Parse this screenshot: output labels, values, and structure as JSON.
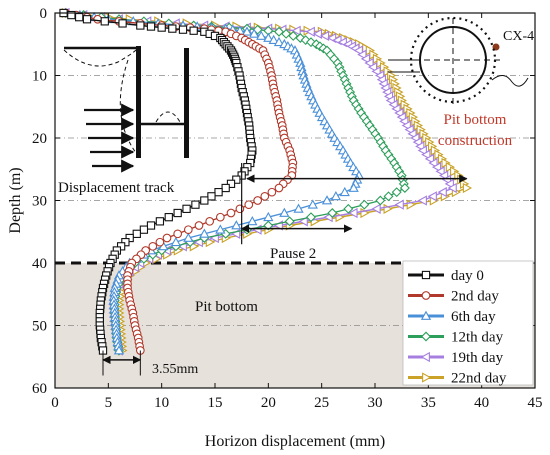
{
  "chart_data": {
    "type": "line",
    "xlabel": "Horizon displacement (mm)",
    "ylabel": "Depth (m)",
    "xlim": [
      0,
      45
    ],
    "ylim": [
      0,
      60
    ],
    "y_inverted": true,
    "x_ticks": [
      0,
      5,
      10,
      15,
      20,
      25,
      30,
      35,
      40,
      45
    ],
    "y_ticks": [
      0,
      10,
      20,
      30,
      40,
      50,
      60
    ],
    "grid": "dash-dot horizontal at 10 m intervals",
    "legend_position": "bottom-right",
    "pit_bottom_depth": 40,
    "colors": {
      "pit_region": "#e6e1da",
      "pit_bottom_annotation": "#c0392b",
      "marker_point": "#8b3a1e"
    },
    "series": [
      {
        "name": "day 0",
        "color": "#111111",
        "marker": "square",
        "points": [
          [
            0.8,
            0
          ],
          [
            3,
            1
          ],
          [
            8,
            2
          ],
          [
            11,
            2.5
          ],
          [
            14,
            3
          ],
          [
            15.5,
            4
          ],
          [
            16,
            5
          ],
          [
            16.5,
            6
          ],
          [
            16.8,
            7
          ],
          [
            17,
            8
          ],
          [
            17.3,
            10
          ],
          [
            17.5,
            12
          ],
          [
            17.8,
            14
          ],
          [
            18,
            16
          ],
          [
            18.2,
            18
          ],
          [
            18.3,
            20
          ],
          [
            18.5,
            22
          ],
          [
            18.3,
            24
          ],
          [
            17.5,
            26
          ],
          [
            16,
            28
          ],
          [
            14,
            30
          ],
          [
            11.5,
            32
          ],
          [
            9,
            34
          ],
          [
            7,
            36
          ],
          [
            5.8,
            38
          ],
          [
            5.2,
            40
          ],
          [
            4.8,
            42
          ],
          [
            4.5,
            44
          ],
          [
            4.3,
            46
          ],
          [
            4.2,
            48
          ],
          [
            4.2,
            50
          ],
          [
            4.3,
            52
          ],
          [
            4.5,
            54
          ]
        ]
      },
      {
        "name": "2nd day",
        "color": "#b0392b",
        "marker": "circle",
        "points": [
          [
            1,
            0
          ],
          [
            4,
            1
          ],
          [
            10,
            2
          ],
          [
            14,
            2.5
          ],
          [
            16,
            3
          ],
          [
            17.5,
            4
          ],
          [
            18.5,
            5
          ],
          [
            19.5,
            6
          ],
          [
            20,
            8
          ],
          [
            20.3,
            10
          ],
          [
            20.5,
            12
          ],
          [
            20.8,
            14
          ],
          [
            21,
            16
          ],
          [
            21.3,
            18
          ],
          [
            21.5,
            20
          ],
          [
            22,
            22
          ],
          [
            22.3,
            24
          ],
          [
            22.2,
            26
          ],
          [
            21,
            28
          ],
          [
            19,
            30
          ],
          [
            16.5,
            32
          ],
          [
            13.5,
            34
          ],
          [
            10.5,
            36
          ],
          [
            8.5,
            38
          ],
          [
            7.2,
            40
          ],
          [
            6.8,
            42
          ],
          [
            6.8,
            44
          ],
          [
            7,
            46
          ],
          [
            7.3,
            48
          ],
          [
            7.5,
            50
          ],
          [
            7.8,
            52
          ],
          [
            8,
            54
          ]
        ]
      },
      {
        "name": "6th day",
        "color": "#4a90d9",
        "marker": "triangle-up",
        "points": [
          [
            1,
            0
          ],
          [
            5,
            1
          ],
          [
            12,
            2
          ],
          [
            16,
            2.5
          ],
          [
            18,
            3
          ],
          [
            20,
            4
          ],
          [
            21.5,
            5
          ],
          [
            22.5,
            6
          ],
          [
            23,
            8
          ],
          [
            23.3,
            10
          ],
          [
            23.7,
            12
          ],
          [
            24.2,
            14
          ],
          [
            24.8,
            16
          ],
          [
            25.5,
            18
          ],
          [
            26.2,
            20
          ],
          [
            27,
            22
          ],
          [
            27.7,
            24
          ],
          [
            28.5,
            26
          ],
          [
            28,
            28
          ],
          [
            25.5,
            30
          ],
          [
            21.5,
            32
          ],
          [
            17,
            34
          ],
          [
            12.5,
            36
          ],
          [
            9,
            38
          ],
          [
            7,
            40
          ],
          [
            6,
            42
          ],
          [
            5.6,
            44
          ],
          [
            5.5,
            46
          ],
          [
            5.6,
            48
          ],
          [
            5.7,
            50
          ],
          [
            5.8,
            52
          ],
          [
            6,
            54
          ]
        ]
      },
      {
        "name": "12th day",
        "color": "#2e9e5b",
        "marker": "diamond",
        "points": [
          [
            1,
            0
          ],
          [
            6,
            1
          ],
          [
            13,
            2
          ],
          [
            18,
            2.5
          ],
          [
            21,
            3
          ],
          [
            23,
            4
          ],
          [
            24.5,
            5
          ],
          [
            25.5,
            6
          ],
          [
            26.5,
            8
          ],
          [
            27,
            10
          ],
          [
            27.5,
            12
          ],
          [
            28,
            14
          ],
          [
            28.7,
            16
          ],
          [
            29.5,
            18
          ],
          [
            30.3,
            20
          ],
          [
            31,
            22
          ],
          [
            31.8,
            24
          ],
          [
            32.5,
            26
          ],
          [
            32.8,
            28
          ],
          [
            30.5,
            30
          ],
          [
            26,
            32
          ],
          [
            20,
            34
          ],
          [
            14,
            36
          ],
          [
            10,
            38
          ],
          [
            7.5,
            40
          ],
          [
            6.3,
            42
          ],
          [
            5.8,
            44
          ],
          [
            5.6,
            46
          ],
          [
            5.6,
            48
          ],
          [
            5.7,
            50
          ],
          [
            5.8,
            52
          ],
          [
            6,
            54
          ]
        ]
      },
      {
        "name": "19th day",
        "color": "#a57ee0",
        "marker": "triangle-left",
        "points": [
          [
            1,
            0
          ],
          [
            6,
            1
          ],
          [
            14,
            2
          ],
          [
            20,
            2.5
          ],
          [
            24,
            3
          ],
          [
            26,
            4
          ],
          [
            27.5,
            5
          ],
          [
            28.5,
            6
          ],
          [
            29.5,
            8
          ],
          [
            30.5,
            10
          ],
          [
            31,
            12
          ],
          [
            31.5,
            14
          ],
          [
            32.3,
            16
          ],
          [
            33,
            18
          ],
          [
            33.8,
            20
          ],
          [
            34.5,
            22
          ],
          [
            35.5,
            24
          ],
          [
            36.5,
            26
          ],
          [
            37.3,
            28
          ],
          [
            34.5,
            30
          ],
          [
            28,
            32
          ],
          [
            21,
            34
          ],
          [
            15,
            36
          ],
          [
            10.5,
            38
          ],
          [
            8,
            40
          ],
          [
            6.5,
            42
          ],
          [
            5.8,
            44
          ],
          [
            5.5,
            46
          ],
          [
            5.5,
            48
          ],
          [
            5.6,
            50
          ],
          [
            5.8,
            52
          ],
          [
            6,
            54
          ]
        ]
      },
      {
        "name": "22nd day",
        "color": "#c9a227",
        "marker": "triangle-right",
        "points": [
          [
            1,
            0
          ],
          [
            7,
            1
          ],
          [
            15,
            2
          ],
          [
            21,
            2.5
          ],
          [
            25,
            3
          ],
          [
            27,
            4
          ],
          [
            28.5,
            5
          ],
          [
            29.5,
            6
          ],
          [
            30.5,
            8
          ],
          [
            31.5,
            10
          ],
          [
            32,
            12
          ],
          [
            32.5,
            14
          ],
          [
            33.3,
            16
          ],
          [
            34,
            18
          ],
          [
            34.8,
            20
          ],
          [
            35.6,
            22
          ],
          [
            36.6,
            24
          ],
          [
            37.8,
            26
          ],
          [
            38.6,
            28
          ],
          [
            35.5,
            30
          ],
          [
            29,
            32
          ],
          [
            22,
            34
          ],
          [
            16,
            36
          ],
          [
            11.5,
            38
          ],
          [
            8.5,
            40
          ],
          [
            7,
            42
          ],
          [
            6.3,
            44
          ],
          [
            6,
            46
          ],
          [
            6,
            48
          ],
          [
            6.1,
            50
          ],
          [
            6.2,
            52
          ],
          [
            6.3,
            54
          ]
        ]
      }
    ],
    "annotations": {
      "cx_label": "CX-4",
      "pit_construction": "Pit bottom construction",
      "pause": "Pause 2",
      "displacement_track": "Displacement track",
      "pit_bottom": "Pit bottom",
      "delta": "3.55mm"
    }
  }
}
